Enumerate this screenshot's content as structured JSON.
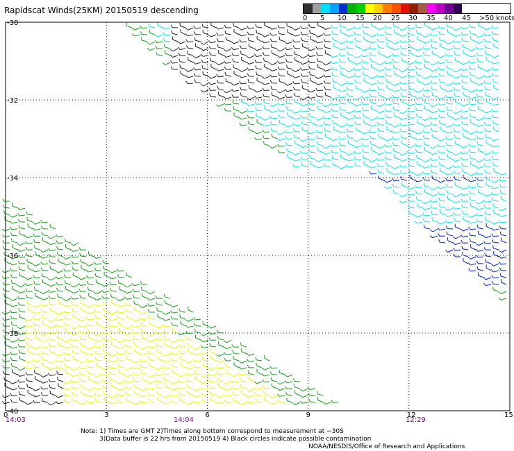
{
  "title": "Rapidscat Winds(25KM) 20150519 descending",
  "legend": {
    "labels": [
      "0",
      "5",
      "10",
      "15",
      "20",
      "25",
      "30",
      "35",
      "40",
      "45",
      ">50 knots"
    ],
    "colors": [
      "#303030",
      "#a0a0a0",
      "#00e0ff",
      "#00a0ff",
      "#0030d0",
      "#00b000",
      "#00d000",
      "#ffff00",
      "#ffd000",
      "#ff8000",
      "#ff5000",
      "#e01000",
      "#902000",
      "#a06040",
      "#ff00ff",
      "#c000c0",
      "#700090",
      "#300050"
    ]
  },
  "axes": {
    "y_labels": [
      "-30",
      "-32",
      "-34",
      "-36",
      "-38",
      "-40"
    ],
    "x_labels": [
      "0",
      "3",
      "6",
      "9",
      "12",
      "15"
    ]
  },
  "times": [
    {
      "text": "14:03",
      "color": "#800080"
    },
    {
      "text": "14:04",
      "color": "#800080"
    },
    {
      "text": "12:29",
      "color": "#800080"
    }
  ],
  "notes": {
    "line1": "Note: 1) Times are GMT 2)Times along bottom correspond to measurement at −30S",
    "line2": "3)Data buffer is 22 hrs from 20150519 4) Black circles indicate possible contamination",
    "line3": "NOAA/NESDIS/Office of Research and Applications"
  },
  "wind_colors": {
    "calm": "#202020",
    "light": "#00e5ee",
    "moderate": "#0020c8",
    "fresh": "#10a010",
    "strong": "#f0f000",
    "gale": "#c06000"
  }
}
